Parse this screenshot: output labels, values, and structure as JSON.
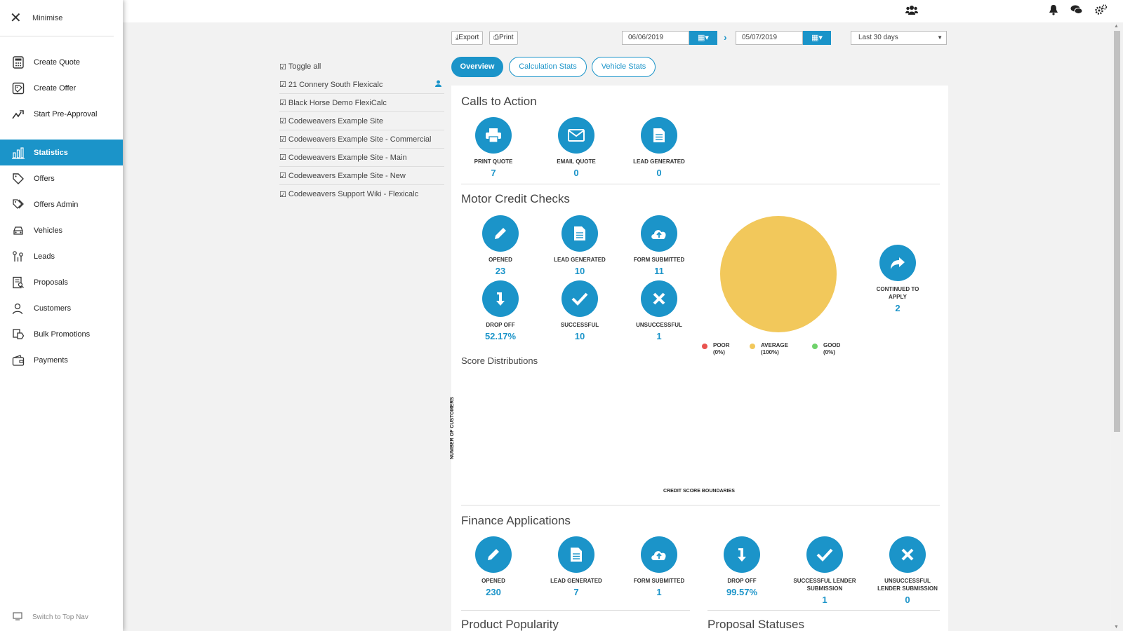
{
  "sidebar": {
    "minimise_label": "Minimise",
    "items": [
      {
        "label": "Create Quote"
      },
      {
        "label": "Create Offer"
      },
      {
        "label": "Start Pre-Approval"
      },
      {
        "label": "Statistics"
      },
      {
        "label": "Offers"
      },
      {
        "label": "Offers Admin"
      },
      {
        "label": "Vehicles"
      },
      {
        "label": "Leads"
      },
      {
        "label": "Proposals"
      },
      {
        "label": "Customers"
      },
      {
        "label": "Bulk Promotions"
      },
      {
        "label": "Payments"
      }
    ],
    "bottom_label": "Switch to Top Nav"
  },
  "toolbar": {
    "export_label": "Export",
    "print_label": "Print",
    "date_from": "06/06/2019",
    "date_to": "05/07/2019",
    "range_select": "Last 30 days"
  },
  "sites": {
    "toggle_all": "Toggle all",
    "items": [
      "21 Connery South Flexicalc",
      "Black Horse Demo FlexiCalc",
      "Codeweavers Example Site",
      "Codeweavers Example Site - Commercial",
      "Codeweavers Example Site - Main",
      "Codeweavers Example Site - New",
      "Codeweavers Support Wiki - Flexicalc"
    ]
  },
  "tabs": {
    "overview": "Overview",
    "calc": "Calculation Stats",
    "vehicle": "Vehicle Stats"
  },
  "calls_to_action": {
    "title": "Calls to Action",
    "items": [
      {
        "label": "PRINT QUOTE",
        "value": "7"
      },
      {
        "label": "EMAIL QUOTE",
        "value": "0"
      },
      {
        "label": "LEAD GENERATED",
        "value": "0"
      }
    ]
  },
  "motor_credit": {
    "title": "Motor Credit Checks",
    "items": [
      {
        "label": "OPENED",
        "value": "23"
      },
      {
        "label": "LEAD GENERATED",
        "value": "10"
      },
      {
        "label": "FORM SUBMITTED",
        "value": "11"
      },
      {
        "label": "DROP OFF",
        "value": "52.17%"
      },
      {
        "label": "SUCCESSFUL",
        "value": "10"
      },
      {
        "label": "UNSUCCESSFUL",
        "value": "1"
      }
    ],
    "continued_label_1": "CONTINUED TO",
    "continued_label_2": "APPLY",
    "continued_value": "2",
    "legend": [
      {
        "name": "POOR",
        "pct": "(0%)",
        "color": "#e9534f"
      },
      {
        "name": "AVERAGE",
        "pct": "(100%)",
        "color": "#f2c85b"
      },
      {
        "name": "GOOD",
        "pct": "(0%)",
        "color": "#6fd26b"
      }
    ]
  },
  "score_dist": {
    "title": "Score Distributions",
    "ylabel": "NUMBER OF CUSTOMERS",
    "xlabel": "CREDIT SCORE BOUNDARIES"
  },
  "finance": {
    "title": "Finance Applications",
    "items": [
      {
        "label": "OPENED",
        "label2": "",
        "value": "230"
      },
      {
        "label": "LEAD GENERATED",
        "label2": "",
        "value": "7"
      },
      {
        "label": "FORM SUBMITTED",
        "label2": "",
        "value": "1"
      },
      {
        "label": "DROP OFF",
        "label2": "",
        "value": "99.57%"
      },
      {
        "label": "SUCCESSFUL LENDER",
        "label2": "SUBMISSION",
        "value": "1"
      },
      {
        "label": "UNSUCCESSFUL",
        "label2": "LENDER SUBMISSION",
        "value": "0"
      }
    ]
  },
  "bottom_sections": {
    "product": "Product Popularity",
    "proposal": "Proposal Statuses"
  },
  "chart_data": {
    "type": "pie",
    "categories": [
      "POOR",
      "AVERAGE",
      "GOOD"
    ],
    "values": [
      0,
      100,
      0
    ],
    "colors": [
      "#e9534f",
      "#f2c85b",
      "#6fd26b"
    ]
  }
}
